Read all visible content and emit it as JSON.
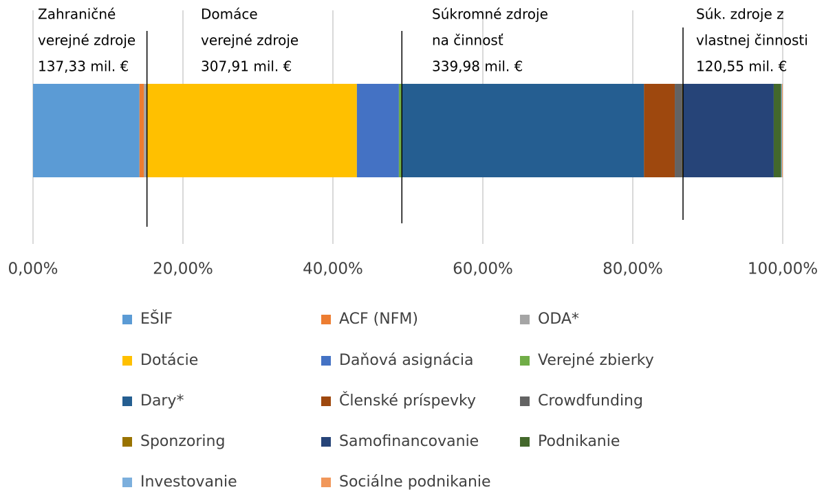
{
  "chart_data": {
    "type": "stacked_bar_horizontal",
    "categories": [
      null
    ],
    "xlim": [
      0,
      100
    ],
    "xticks": [
      {
        "value": 0,
        "label": "0,00%"
      },
      {
        "value": 20,
        "label": "20,00%"
      },
      {
        "value": 40,
        "label": "40,00%"
      },
      {
        "value": 60,
        "label": "60,00%"
      },
      {
        "value": 80,
        "label": "80,00%"
      },
      {
        "value": 100,
        "label": "100,00%"
      }
    ],
    "grid": true,
    "legend": "bottom",
    "series": [
      {
        "name": "EŠIF",
        "color": "#5b9bd5",
        "values": [
          14.2
        ]
      },
      {
        "name": "ACF (NFM)",
        "color": "#ed7d31",
        "values": [
          0.6
        ]
      },
      {
        "name": "ODA*",
        "color": "#a5a5a5",
        "values": [
          0.4
        ]
      },
      {
        "name": "Dotácie",
        "color": "#ffc000",
        "values": [
          28.0
        ]
      },
      {
        "name": "Daňová asignácia",
        "color": "#4472c4",
        "values": [
          5.6
        ]
      },
      {
        "name": "Verejné zbierky",
        "color": "#70ad47",
        "values": [
          0.4
        ]
      },
      {
        "name": "Dary*",
        "color": "#255e91",
        "values": [
          32.3
        ]
      },
      {
        "name": "Členské príspevky",
        "color": "#9e480e",
        "values": [
          4.1
        ]
      },
      {
        "name": "Crowdfunding",
        "color": "#636363",
        "values": [
          1.0
        ]
      },
      {
        "name": "Sponzoring",
        "color": "#997300",
        "values": [
          0.1
        ]
      },
      {
        "name": "Samofinancovanie",
        "color": "#264478",
        "values": [
          12.1
        ]
      },
      {
        "name": "Podnikanie",
        "color": "#43682b",
        "values": [
          1.0
        ]
      },
      {
        "name": "Investovanie",
        "color": "#7cafdd",
        "values": [
          0.1
        ]
      },
      {
        "name": "Sociálne podnikanie",
        "color": "#f1975a",
        "values": [
          0.1
        ]
      }
    ],
    "annotations": [
      {
        "lines": [
          "Zahraničné",
          "verejné zdroje",
          "137,33 mil. €"
        ]
      },
      {
        "lines": [
          "Domáce",
          "verejné zdroje",
          "307,91 mil. €"
        ]
      },
      {
        "lines": [
          "Súkromné zdroje",
          "na činnosť",
          "339,98 mil. €"
        ]
      },
      {
        "lines": [
          "Súk. zdroje z",
          "vlastnej činnosti",
          "120,55 mil. €"
        ]
      }
    ]
  }
}
